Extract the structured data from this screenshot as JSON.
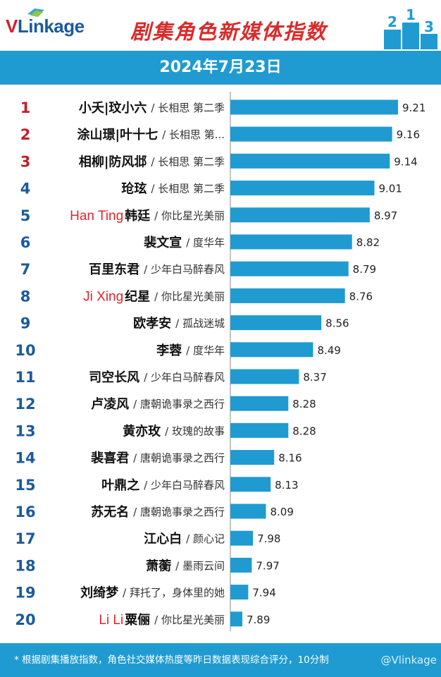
{
  "header": {
    "logo_text_v": "V",
    "logo_text_rest": "Linkage",
    "title": "剧集角色新媒体指数",
    "podium_numbers": [
      "2",
      "1",
      "3"
    ]
  },
  "date": "2024年7月23日",
  "colors": {
    "brand_blue": "#1f9bd1",
    "rank_red": "#c0202a",
    "rank_blue": "#1a5b9c",
    "annotation_red": "#e0242a",
    "bar": "#1f9bd1"
  },
  "chart_data": {
    "type": "bar",
    "orientation": "horizontal",
    "xlim": [
      0,
      9.3
    ],
    "categories": [
      "小夭|玟小六 / 长相思 第二季",
      "涂山璟|叶十七 / 长相思 第...",
      "相柳|防风邶 / 长相思 第二季",
      "玱玹 / 长相思 第二季",
      "韩廷 / 你比星光美丽",
      "裴文宣 / 度华年",
      "百里东君 / 少年白马醉春风",
      "纪星 / 你比星光美丽",
      "欧孝安 / 孤战迷城",
      "李蓉 / 度华年",
      "司空长风 / 少年白马醉春风",
      "卢凌风 / 唐朝诡事录之西行",
      "黄亦玫 / 玫瑰的故事",
      "裴喜君 / 唐朝诡事录之西行",
      "叶鼎之 / 少年白马醉春风",
      "苏无名 / 唐朝诡事录之西行",
      "江心白 / 颜心记",
      "萧蘅 / 墨雨云间",
      "刘绮梦 / 拜托了，身体里的她",
      "粟俪 / 你比星光美丽"
    ],
    "series": [
      {
        "values": [
          9.21,
          9.16,
          9.14,
          9.01,
          8.97,
          8.82,
          8.79,
          8.76,
          8.56,
          8.49,
          8.37,
          8.28,
          8.28,
          8.16,
          8.13,
          8.09,
          7.98,
          7.97,
          7.94,
          7.89
        ]
      }
    ],
    "rows": [
      {
        "rank": "1",
        "name": "小夭|玟小六",
        "show": "/ 长相思 第二季",
        "value": "9.21",
        "note": ""
      },
      {
        "rank": "2",
        "name": "涂山璟|叶十七",
        "show": "/ 长相思 第...",
        "value": "9.16",
        "note": ""
      },
      {
        "rank": "3",
        "name": "相柳|防风邶",
        "show": "/ 长相思 第二季",
        "value": "9.14",
        "note": ""
      },
      {
        "rank": "4",
        "name": "玱玹",
        "show": "/ 长相思 第二季",
        "value": "9.01",
        "note": ""
      },
      {
        "rank": "5",
        "name": "韩廷",
        "show": "/ 你比星光美丽",
        "value": "8.97",
        "note": "Han Ting"
      },
      {
        "rank": "6",
        "name": "裴文宣",
        "show": "/ 度华年",
        "value": "8.82",
        "note": ""
      },
      {
        "rank": "7",
        "name": "百里东君",
        "show": "/ 少年白马醉春风",
        "value": "8.79",
        "note": ""
      },
      {
        "rank": "8",
        "name": "纪星",
        "show": "/ 你比星光美丽",
        "value": "8.76",
        "note": "Ji Xing"
      },
      {
        "rank": "9",
        "name": "欧孝安",
        "show": "/ 孤战迷城",
        "value": "8.56",
        "note": ""
      },
      {
        "rank": "10",
        "name": "李蓉",
        "show": "/ 度华年",
        "value": "8.49",
        "note": ""
      },
      {
        "rank": "11",
        "name": "司空长风",
        "show": "/ 少年白马醉春风",
        "value": "8.37",
        "note": ""
      },
      {
        "rank": "12",
        "name": "卢凌风",
        "show": "/ 唐朝诡事录之西行",
        "value": "8.28",
        "note": ""
      },
      {
        "rank": "13",
        "name": "黄亦玫",
        "show": "/ 玫瑰的故事",
        "value": "8.28",
        "note": ""
      },
      {
        "rank": "14",
        "name": "裴喜君",
        "show": "/ 唐朝诡事录之西行",
        "value": "8.16",
        "note": ""
      },
      {
        "rank": "15",
        "name": "叶鼎之",
        "show": "/ 少年白马醉春风",
        "value": "8.13",
        "note": ""
      },
      {
        "rank": "16",
        "name": "苏无名",
        "show": "/ 唐朝诡事录之西行",
        "value": "8.09",
        "note": ""
      },
      {
        "rank": "17",
        "name": "江心白",
        "show": "/ 颜心记",
        "value": "7.98",
        "note": ""
      },
      {
        "rank": "18",
        "name": "萧蘅",
        "show": "/ 墨雨云间",
        "value": "7.97",
        "note": ""
      },
      {
        "rank": "19",
        "name": "刘绮梦",
        "show": "/ 拜托了，身体里的她",
        "value": "7.94",
        "note": ""
      },
      {
        "rank": "20",
        "name": "粟俪",
        "show": "/ 你比星光美丽",
        "value": "7.89",
        "note": "Li Li"
      }
    ],
    "grid": false,
    "legend": "none"
  },
  "footer": {
    "note": "* 根据剧集播放指数，角色社交媒体热度等昨日数据表现综合评分，10分制",
    "brand": "@Vlinkage"
  }
}
